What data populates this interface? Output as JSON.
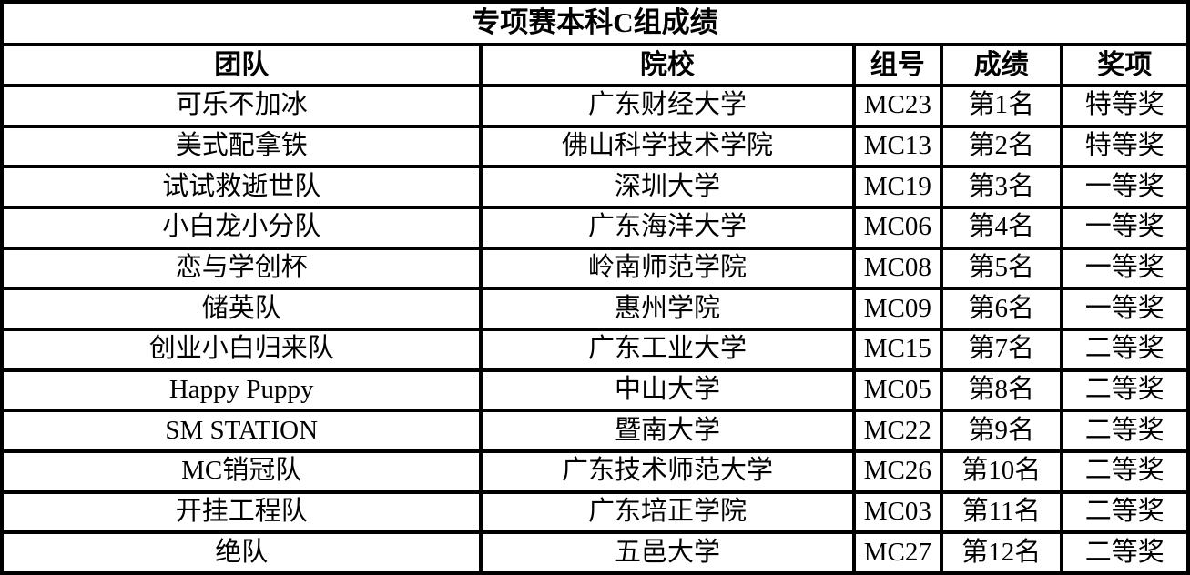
{
  "table": {
    "title": "专项赛本科C组成绩",
    "columns": [
      "团队",
      "院校",
      "组号",
      "成绩",
      "奖项"
    ],
    "rows": [
      [
        "可乐不加冰",
        "广东财经大学",
        "MC23",
        "第1名",
        "特等奖"
      ],
      [
        "美式配拿铁",
        "佛山科学技术学院",
        "MC13",
        "第2名",
        "特等奖"
      ],
      [
        "试试救逝世队",
        "深圳大学",
        "MC19",
        "第3名",
        "一等奖"
      ],
      [
        "小白龙小分队",
        "广东海洋大学",
        "MC06",
        "第4名",
        "一等奖"
      ],
      [
        "恋与学创杯",
        "岭南师范学院",
        "MC08",
        "第5名",
        "一等奖"
      ],
      [
        "储英队",
        "惠州学院",
        "MC09",
        "第6名",
        "一等奖"
      ],
      [
        "创业小白归来队",
        "广东工业大学",
        "MC15",
        "第7名",
        "二等奖"
      ],
      [
        "Happy Puppy",
        "中山大学",
        "MC05",
        "第8名",
        "二等奖"
      ],
      [
        "SM STATION",
        "暨南大学",
        "MC22",
        "第9名",
        "二等奖"
      ],
      [
        "MC销冠队",
        "广东技术师范大学",
        "MC26",
        "第10名",
        "二等奖"
      ],
      [
        "开挂工程队",
        "广东培正学院",
        "MC03",
        "第11名",
        "二等奖"
      ],
      [
        "绝队",
        "五邑大学",
        "MC27",
        "第12名",
        "二等奖"
      ]
    ],
    "colors": {
      "border": "#000000",
      "background": "#ffffff",
      "text": "#000000"
    }
  }
}
